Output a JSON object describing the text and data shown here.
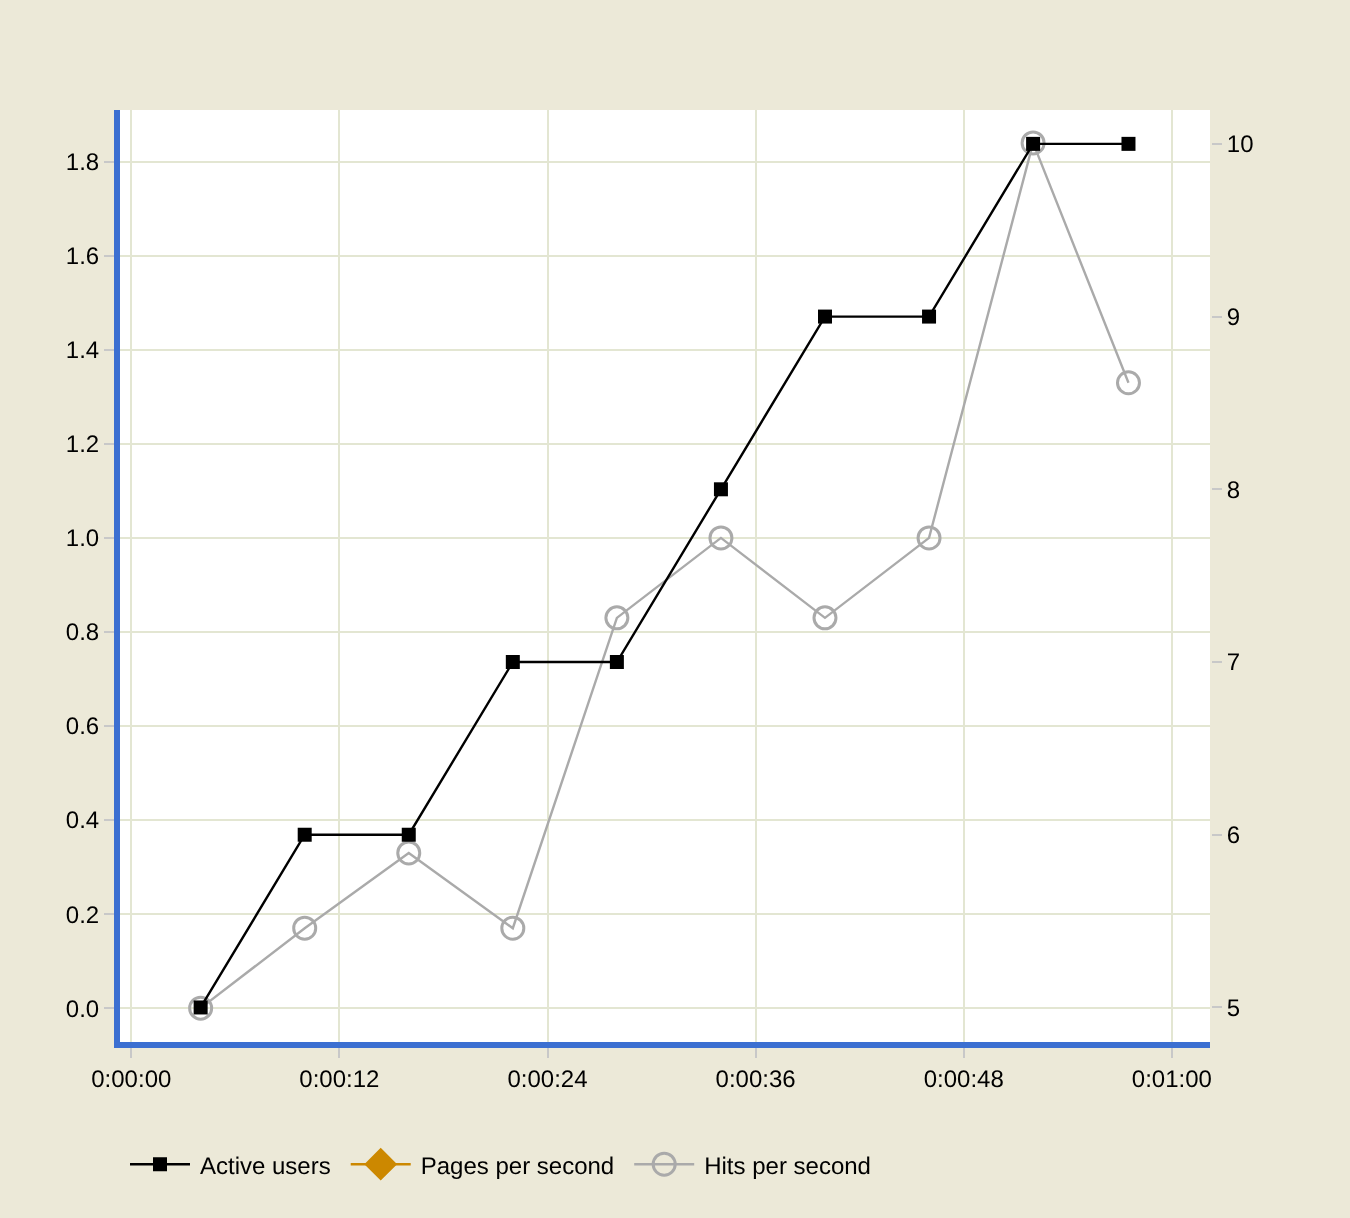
{
  "chart_data": {
    "type": "line",
    "x": [
      4,
      10,
      16,
      22,
      28,
      34,
      40,
      46,
      52,
      57.5
    ],
    "series": [
      {
        "name": "Active users",
        "color": "#000000",
        "axis": "y2",
        "marker": "square",
        "values": [
          5,
          6,
          6,
          7,
          7,
          8,
          9,
          9,
          10,
          10
        ]
      },
      {
        "name": "Pages per second",
        "color": "#cc8800",
        "marker": "diamond",
        "values": [
          null,
          null,
          null,
          null,
          null,
          null,
          null,
          null,
          null,
          null
        ]
      },
      {
        "name": "Hits per second",
        "color": "#aaaaaa",
        "marker": "circle",
        "values": [
          0,
          0.17,
          0.33,
          0.17,
          0.83,
          1.0,
          0.83,
          1.0,
          1.84,
          1.33
        ]
      }
    ],
    "xlim": [
      -0.65,
      62.2
    ],
    "xticks": [
      {
        "value": 0,
        "label": "0:00:00"
      },
      {
        "value": 12,
        "label": "0:00:12"
      },
      {
        "value": 24,
        "label": "0:00:24"
      },
      {
        "value": 36,
        "label": "0:00:36"
      },
      {
        "value": 48,
        "label": "0:00:48"
      },
      {
        "value": 60,
        "label": "0:01:00"
      }
    ],
    "ylim": [
      -0.072,
      1.91
    ],
    "yticks": [
      {
        "value": 0,
        "label": "0.0"
      },
      0.2,
      0.4,
      0.6,
      0.8,
      {
        "value": 1,
        "label": "1.0"
      },
      1.2,
      1.4,
      1.6,
      1.8
    ],
    "y2lim": [
      4.8,
      10.196
    ],
    "y2ticks": [
      5,
      6,
      7,
      8,
      9,
      10
    ],
    "grid": true,
    "legend": "bottom",
    "line_style": "solid"
  }
}
